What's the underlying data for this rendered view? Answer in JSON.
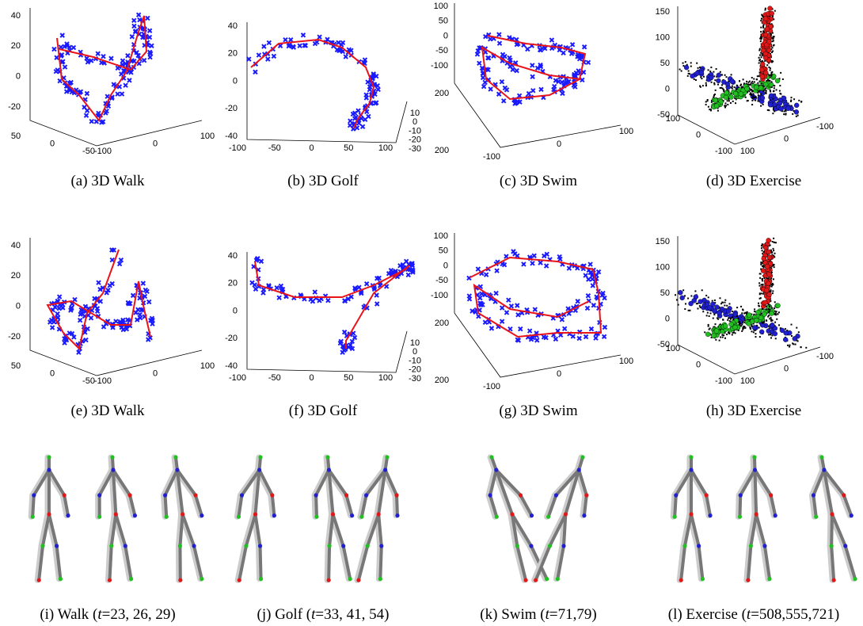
{
  "plots": [
    {
      "caption": "(a) 3D Walk",
      "z": [
        40,
        20,
        0,
        -20
      ],
      "a": [
        50,
        0,
        -50
      ],
      "b": [
        -100,
        0,
        100
      ]
    },
    {
      "caption": "(b) 3D Golf",
      "z": [
        40,
        20,
        0,
        -20,
        -40
      ],
      "a": [
        -100,
        -50,
        0,
        50,
        100
      ],
      "b": [
        -30,
        -20,
        -10,
        0,
        10
      ]
    },
    {
      "caption": "(c) 3D Swim",
      "z": [
        100,
        50,
        0,
        -50,
        -100
      ],
      "a": [
        200,
        200
      ],
      "b": [
        -100,
        0,
        100
      ]
    },
    {
      "caption": "(d) 3D Exercise",
      "z": [
        150,
        100,
        50,
        0,
        -50
      ],
      "a": [
        100,
        0,
        -100
      ],
      "b": [
        100,
        0,
        -100
      ]
    },
    {
      "caption": "(e) 3D Walk",
      "z": [
        40,
        20,
        0,
        -20
      ],
      "a": [
        50,
        0,
        -50
      ],
      "b": [
        -100,
        0,
        100
      ]
    },
    {
      "caption": "(f) 3D Golf",
      "z": [
        40,
        20,
        0,
        -20,
        -40
      ],
      "a": [
        -100,
        -50,
        0,
        50,
        100
      ],
      "b": [
        -30,
        -20,
        -10,
        0,
        10
      ]
    },
    {
      "caption": "(g) 3D Swim",
      "z": [
        100,
        50,
        0,
        -50,
        -100
      ],
      "a": [
        200,
        200
      ],
      "b": [
        -100,
        0,
        100
      ]
    },
    {
      "caption": "(h) 3D Exercise",
      "z": [
        150,
        100,
        50,
        0,
        -50
      ],
      "a": [
        100,
        0,
        -100
      ],
      "b": [
        100,
        0,
        -100
      ]
    }
  ],
  "skeletons": [
    {
      "caption": [
        "(i) Walk (",
        "t",
        "=23, 26, 29)"
      ]
    },
    {
      "caption": [
        "(j) Golf (",
        "t",
        "=33, 41, 54)"
      ]
    },
    {
      "caption": [
        "(k) Swim (",
        "t",
        "=71,79)"
      ]
    },
    {
      "caption": [
        "(l) Exercise (",
        "t",
        "=508,555,721)"
      ]
    }
  ]
}
